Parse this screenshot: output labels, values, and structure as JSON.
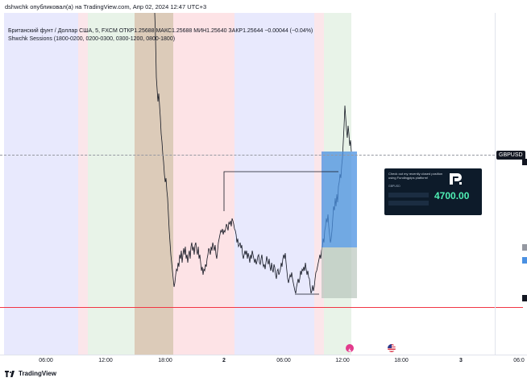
{
  "header": {
    "text": "dshwchk опубликовал(а) на TradingView.com, Апр 02, 2024 12:47 UTC+3"
  },
  "legend": {
    "line1": "Британский фунт / Доллар США, 5, FXCM  ОТКР1.25688  МАКС1.25688  МИН1.25640  ЗАКР1.25644  −0.00044 (−0.04%)",
    "line2": "Shwchk Sessions (1800-0200, 0200-0300, 0300-1200, 0800-1800)"
  },
  "symbol_label": "GBPUSD",
  "x_axis": {
    "ticks": [
      "06:00",
      "12:00",
      "18:00",
      "2",
      "06:00",
      "12:00",
      "18:00",
      "3",
      "06:0"
    ]
  },
  "footer": {
    "brand": "TradingView"
  },
  "card": {
    "title": "Check out my recently closed position using Fundingpips platform!",
    "pair": "GBPUSD",
    "value": "4700.00"
  },
  "colors": {
    "session_blue": "#e6e8ff",
    "session_pink": "#fde7ea",
    "session_green": "#e5f3e6",
    "session_brown": "#d9c9b8",
    "profit_zone": "#4a90e2",
    "stop_zone": "#c9d3cc",
    "red_line": "#f23645",
    "price_line": "#131722"
  },
  "icons": [
    "flash-event-icon",
    "us-flag-event-icon",
    "tradingview-logo-icon"
  ]
}
